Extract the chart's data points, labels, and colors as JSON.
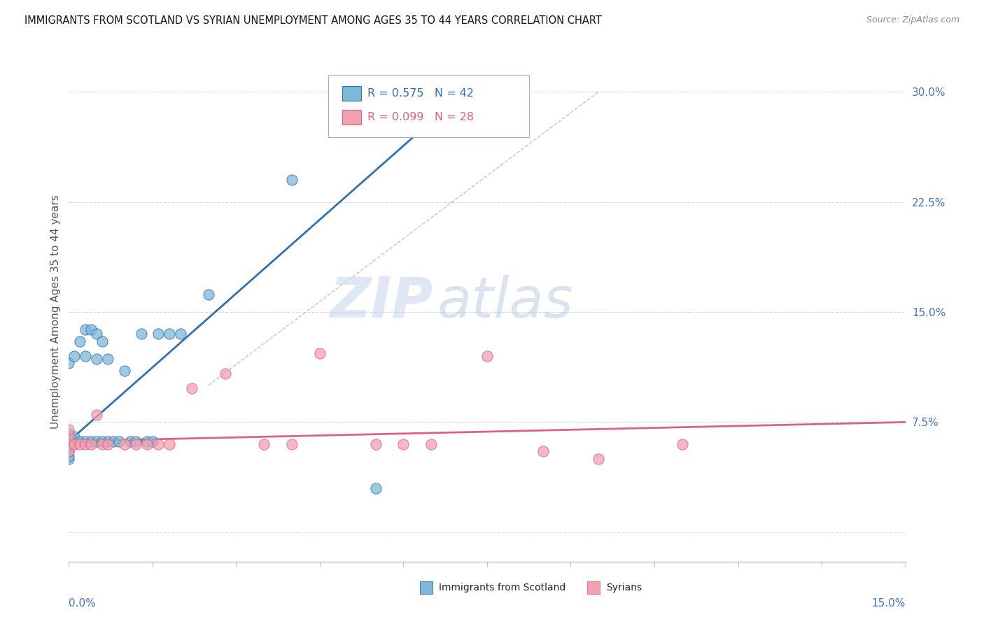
{
  "title": "IMMIGRANTS FROM SCOTLAND VS SYRIAN UNEMPLOYMENT AMONG AGES 35 TO 44 YEARS CORRELATION CHART",
  "source": "Source: ZipAtlas.com",
  "ylabel": "Unemployment Among Ages 35 to 44 years",
  "xlim": [
    0.0,
    0.15
  ],
  "ylim": [
    -0.02,
    0.32
  ],
  "ytick_positions": [
    0.0,
    0.075,
    0.15,
    0.225,
    0.3
  ],
  "ytick_labels": [
    "",
    "7.5%",
    "15.0%",
    "22.5%",
    "30.0%"
  ],
  "scotland_color": "#7db8d8",
  "syrian_color": "#f4a0b0",
  "scotland_line_color": "#3370b0",
  "syrian_line_color": "#e06080",
  "diagonal_color": "#b0b8d0",
  "watermark_zip": "ZIP",
  "watermark_atlas": "atlas",
  "background_color": "#ffffff",
  "grid_color": "#d8dce8",
  "legend_box_color": "#ddddee",
  "scotland_r": "R = 0.575",
  "scotland_n": "N = 42",
  "syrian_r": "R = 0.099",
  "syrian_n": "N = 28",
  "scotland_x": [
    0.0,
    0.0,
    0.0,
    0.0,
    0.0,
    0.0,
    0.0,
    0.0,
    0.0,
    0.0,
    0.001,
    0.001,
    0.001,
    0.002,
    0.002,
    0.003,
    0.003,
    0.003,
    0.004,
    0.004,
    0.005,
    0.005,
    0.005,
    0.006,
    0.006,
    0.007,
    0.007,
    0.008,
    0.009,
    0.01,
    0.011,
    0.012,
    0.013,
    0.014,
    0.015,
    0.016,
    0.018,
    0.02,
    0.025,
    0.04,
    0.055,
    0.065
  ],
  "scotland_y": [
    0.05,
    0.052,
    0.055,
    0.058,
    0.06,
    0.062,
    0.063,
    0.065,
    0.067,
    0.115,
    0.062,
    0.065,
    0.12,
    0.062,
    0.13,
    0.062,
    0.12,
    0.138,
    0.062,
    0.138,
    0.062,
    0.118,
    0.135,
    0.062,
    0.13,
    0.062,
    0.118,
    0.062,
    0.062,
    0.11,
    0.062,
    0.062,
    0.135,
    0.062,
    0.062,
    0.135,
    0.135,
    0.135,
    0.162,
    0.24,
    0.03,
    0.28
  ],
  "syrian_x": [
    0.0,
    0.0,
    0.0,
    0.0,
    0.001,
    0.002,
    0.003,
    0.004,
    0.005,
    0.006,
    0.007,
    0.01,
    0.012,
    0.014,
    0.016,
    0.018,
    0.022,
    0.028,
    0.035,
    0.04,
    0.045,
    0.055,
    0.06,
    0.065,
    0.075,
    0.085,
    0.095,
    0.11
  ],
  "syrian_y": [
    0.055,
    0.06,
    0.065,
    0.07,
    0.06,
    0.06,
    0.06,
    0.06,
    0.08,
    0.06,
    0.06,
    0.06,
    0.06,
    0.06,
    0.06,
    0.06,
    0.098,
    0.108,
    0.06,
    0.06,
    0.122,
    0.06,
    0.06,
    0.06,
    0.12,
    0.055,
    0.05,
    0.06
  ],
  "scatter_size": 120,
  "scatter_alpha": 0.75
}
